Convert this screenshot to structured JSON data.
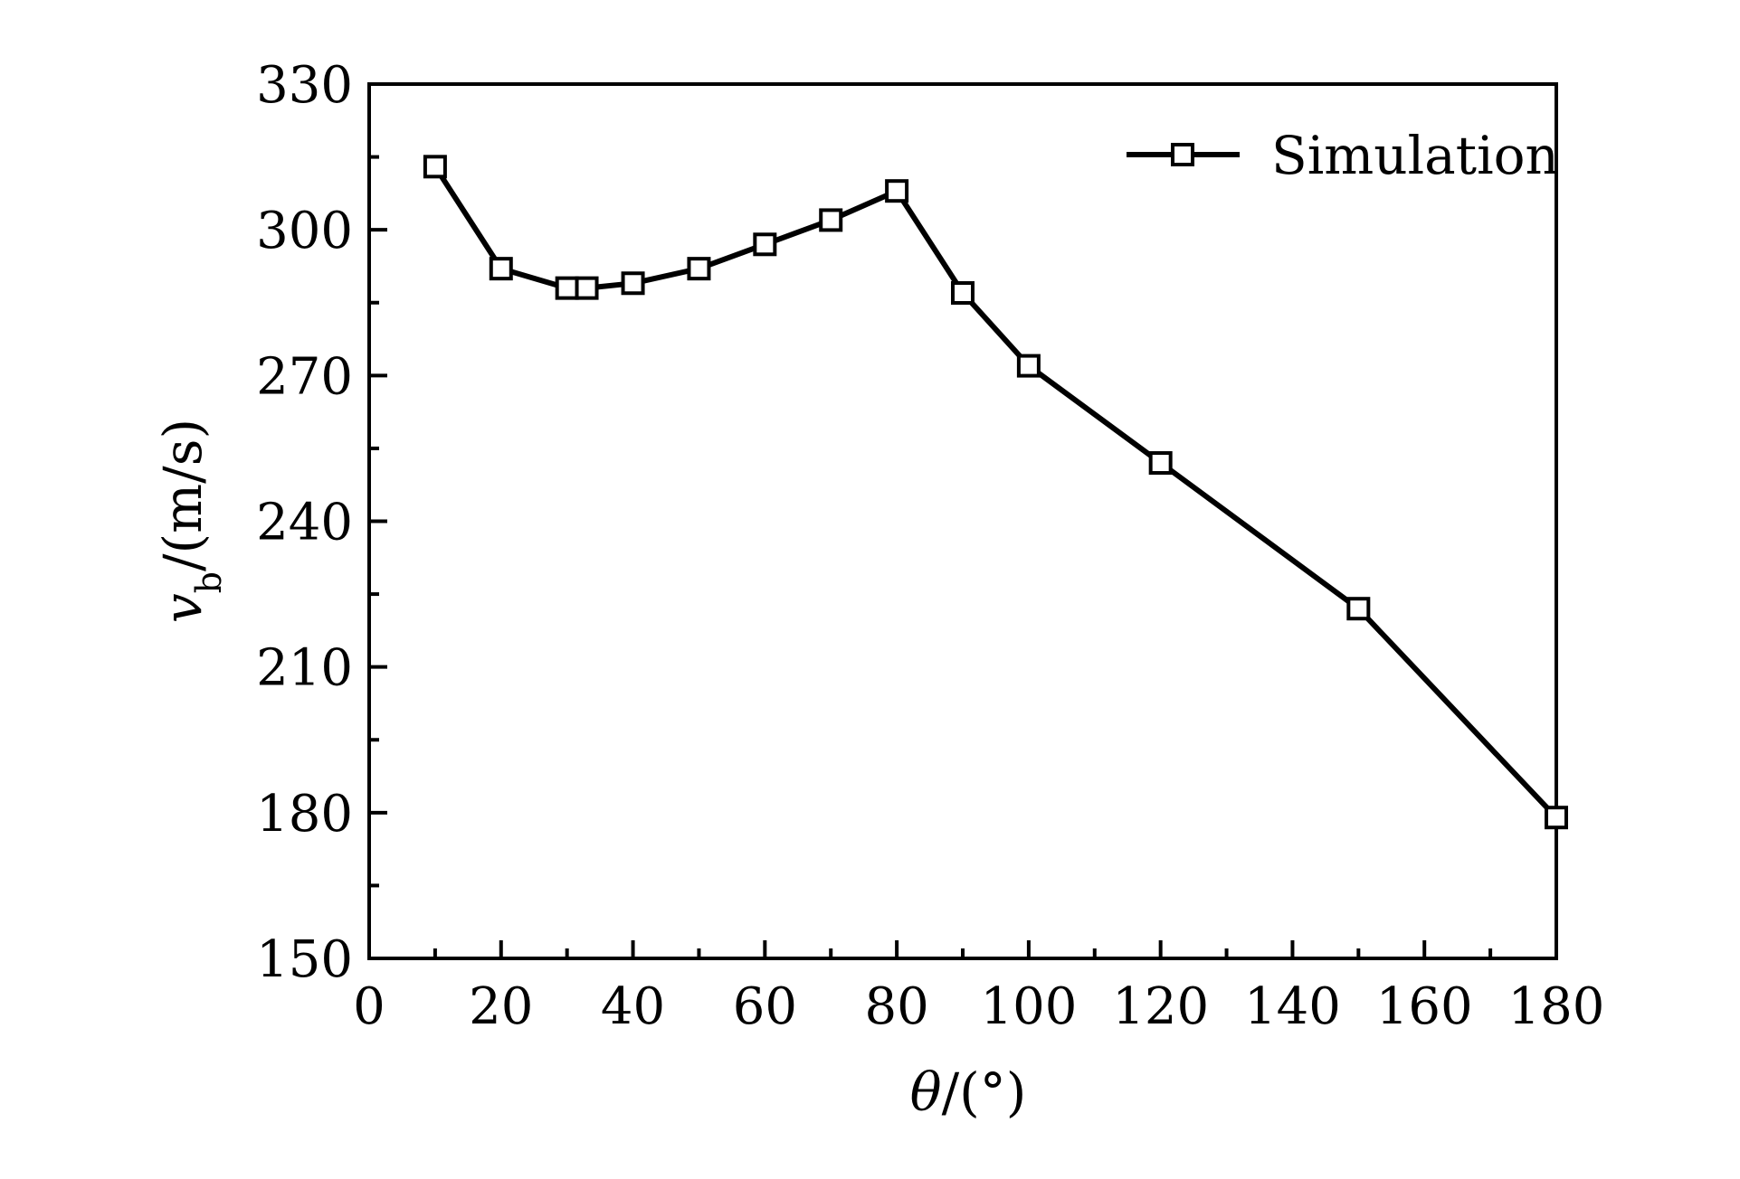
{
  "chart_data": {
    "type": "line",
    "xlabel": "θ/(°)",
    "ylabel": "v_b/(m/s)",
    "xlim": [
      0,
      180
    ],
    "ylim": [
      150,
      330
    ],
    "xticks": [
      0,
      20,
      40,
      60,
      80,
      100,
      120,
      140,
      160,
      180
    ],
    "yticks": [
      150,
      180,
      210,
      240,
      270,
      300,
      330
    ],
    "grid": false,
    "legend_position": "top-right",
    "series": [
      {
        "name": "Simulation",
        "marker": "open-square",
        "color": "#000000",
        "x": [
          10,
          20,
          30,
          33,
          40,
          50,
          60,
          70,
          80,
          90,
          100,
          120,
          150,
          180
        ],
        "y": [
          313,
          292,
          288,
          288,
          289,
          292,
          297,
          302,
          308,
          287,
          272,
          252,
          222,
          179
        ]
      }
    ]
  }
}
